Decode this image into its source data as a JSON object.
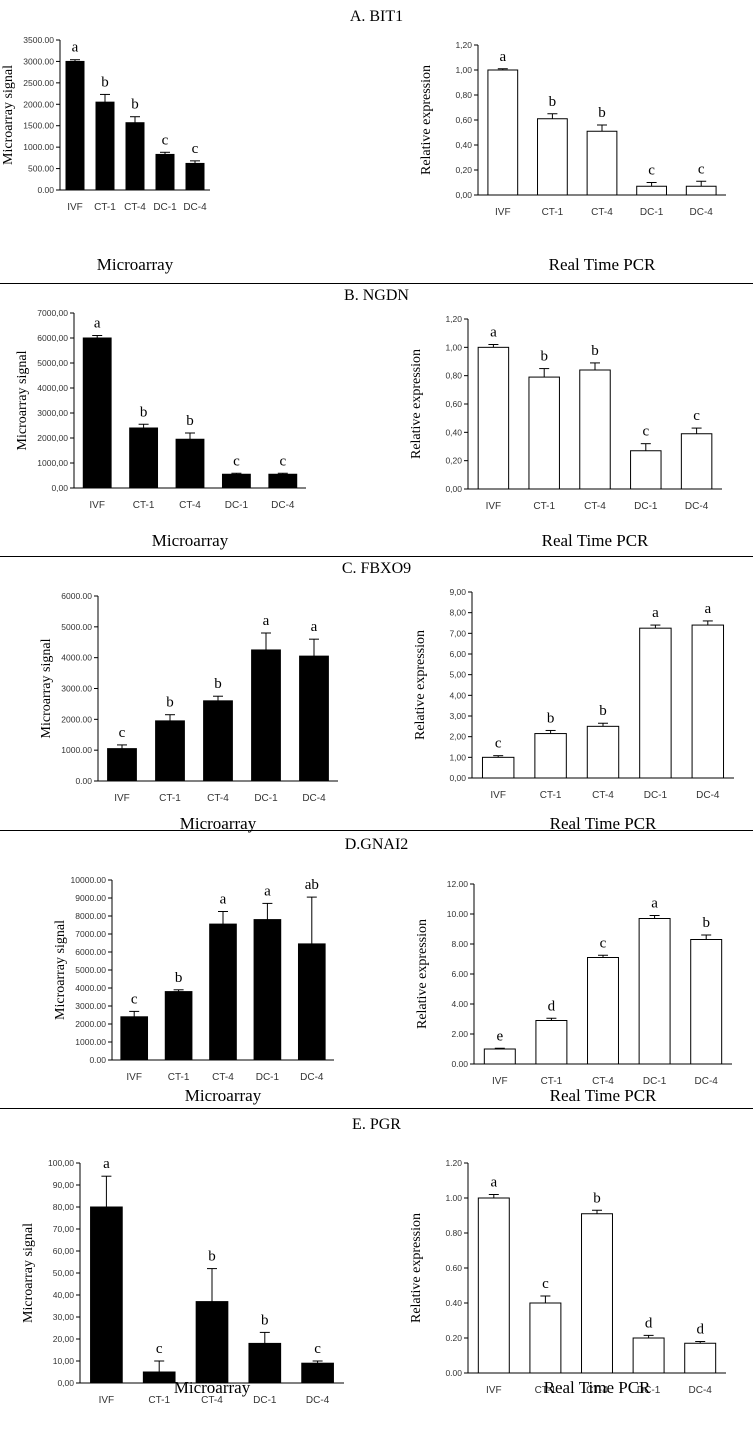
{
  "chart_data": [
    {
      "panel_title": "A. BIT1",
      "charts": [
        {
          "type": "bar",
          "caption": "Microarray",
          "ylabel": "Microarray signal",
          "categories": [
            "IVF",
            "CT-1",
            "CT-4",
            "DC-1",
            "DC-4"
          ],
          "values": [
            3000,
            2050,
            1570,
            830,
            620
          ],
          "errors": [
            40,
            180,
            140,
            50,
            60
          ],
          "letters": [
            "a",
            "b",
            "b",
            "c",
            "c"
          ],
          "ylim": [
            0,
            3500
          ],
          "yticks": [
            "0.00",
            "500.00",
            "1000.00",
            "1500.00",
            "2000.00",
            "2500.00",
            "3000.00",
            "3500.00"
          ],
          "fill": "#000000"
        },
        {
          "type": "bar",
          "caption": "Real Time PCR",
          "ylabel": "Relative expression",
          "categories": [
            "IVF",
            "CT-1",
            "CT-4",
            "DC-1",
            "DC-4"
          ],
          "values": [
            1.0,
            0.61,
            0.51,
            0.07,
            0.07
          ],
          "errors": [
            0.01,
            0.04,
            0.05,
            0.03,
            0.04
          ],
          "letters": [
            "a",
            "b",
            "b",
            "c",
            "c"
          ],
          "ylim": [
            0,
            1.2
          ],
          "yticks": [
            "0,00",
            "0,20",
            "0,40",
            "0,60",
            "0,80",
            "1,00",
            "1,20"
          ],
          "fill": "#ffffff"
        }
      ]
    },
    {
      "panel_title": "B. NGDN",
      "charts": [
        {
          "type": "bar",
          "caption": "Microarray",
          "ylabel": "Microarray signal",
          "categories": [
            "IVF",
            "CT-1",
            "CT-4",
            "DC-1",
            "DC-4"
          ],
          "values": [
            6000,
            2400,
            1950,
            550,
            550
          ],
          "errors": [
            100,
            150,
            250,
            40,
            40
          ],
          "letters": [
            "a",
            "b",
            "b",
            "c",
            "c"
          ],
          "ylim": [
            0,
            7000
          ],
          "yticks": [
            "0,00",
            "1000,00",
            "2000,00",
            "3000,00",
            "4000,00",
            "5000,00",
            "6000,00",
            "7000,00"
          ],
          "fill": "#000000"
        },
        {
          "type": "bar",
          "caption": "Real Time PCR",
          "ylabel": "Relative expression",
          "categories": [
            "IVF",
            "CT-1",
            "CT-4",
            "DC-1",
            "DC-4"
          ],
          "values": [
            1.0,
            0.79,
            0.84,
            0.27,
            0.39
          ],
          "errors": [
            0.02,
            0.06,
            0.05,
            0.05,
            0.04
          ],
          "letters": [
            "a",
            "b",
            "b",
            "c",
            "c"
          ],
          "ylim": [
            0,
            1.2
          ],
          "yticks": [
            "0,00",
            "0,20",
            "0,40",
            "0,60",
            "0,80",
            "1,00",
            "1,20"
          ],
          "fill": "#ffffff"
        }
      ]
    },
    {
      "panel_title": "C. FBXO9",
      "charts": [
        {
          "type": "bar",
          "caption": "Microarray",
          "ylabel": "Microarray signal",
          "categories": [
            "IVF",
            "CT-1",
            "CT-4",
            "DC-1",
            "DC-4"
          ],
          "values": [
            1050,
            1950,
            2600,
            4250,
            4050
          ],
          "errors": [
            120,
            200,
            150,
            550,
            550
          ],
          "letters": [
            "c",
            "b",
            "b",
            "a",
            "a"
          ],
          "ylim": [
            0,
            6000
          ],
          "yticks": [
            "0.00",
            "1000.00",
            "2000.00",
            "3000.00",
            "4000.00",
            "5000.00",
            "6000.00"
          ],
          "fill": "#000000"
        },
        {
          "type": "bar",
          "caption": "Real Time PCR",
          "ylabel": "Relative expression",
          "categories": [
            "IVF",
            "CT-1",
            "CT-4",
            "DC-1",
            "DC-4"
          ],
          "values": [
            1.0,
            2.15,
            2.5,
            7.25,
            7.4
          ],
          "errors": [
            0.08,
            0.15,
            0.15,
            0.15,
            0.2
          ],
          "letters": [
            "c",
            "b",
            "b",
            "a",
            "a"
          ],
          "ylim": [
            0,
            9
          ],
          "yticks": [
            "0,00",
            "1,00",
            "2,00",
            "3,00",
            "4,00",
            "5,00",
            "6,00",
            "7,00",
            "8,00",
            "9,00"
          ],
          "fill": "#ffffff"
        }
      ]
    },
    {
      "panel_title": "D.GNAI2",
      "charts": [
        {
          "type": "bar",
          "caption": "Microarray",
          "ylabel": "Microarray signal",
          "categories": [
            "IVF",
            "CT-1",
            "CT-4",
            "DC-1",
            "DC-4"
          ],
          "values": [
            2400,
            3800,
            7550,
            7800,
            6450
          ],
          "errors": [
            300,
            100,
            700,
            900,
            2600
          ],
          "letters": [
            "c",
            "b",
            "a",
            "a",
            "ab"
          ],
          "ylim": [
            0,
            10000
          ],
          "yticks": [
            "0.00",
            "1000.00",
            "2000.00",
            "3000.00",
            "4000.00",
            "5000.00",
            "6000.00",
            "7000.00",
            "8000.00",
            "9000.00",
            "10000.00"
          ],
          "fill": "#000000"
        },
        {
          "type": "bar",
          "caption": "Real Time PCR",
          "ylabel": "Relative expression",
          "categories": [
            "IVF",
            "CT-1",
            "CT-4",
            "DC-1",
            "DC-4"
          ],
          "values": [
            1.0,
            2.9,
            7.1,
            9.7,
            8.3
          ],
          "errors": [
            0.05,
            0.15,
            0.15,
            0.2,
            0.3
          ],
          "letters": [
            "e",
            "d",
            "c",
            "a",
            "b"
          ],
          "ylim": [
            0,
            12
          ],
          "yticks": [
            "0.00",
            "2.00",
            "4.00",
            "6.00",
            "8.00",
            "10.00",
            "12.00"
          ],
          "fill": "#ffffff"
        }
      ]
    },
    {
      "panel_title": "E. PGR",
      "charts": [
        {
          "type": "bar",
          "caption": "Microarray",
          "ylabel": "Microarray signal",
          "categories": [
            "IVF",
            "CT-1",
            "CT-4",
            "DC-1",
            "DC-4"
          ],
          "values": [
            80,
            5,
            37,
            18,
            9
          ],
          "errors": [
            14,
            5,
            15,
            5,
            1
          ],
          "letters": [
            "a",
            "c",
            "b",
            "b",
            "c"
          ],
          "ylim": [
            0,
            100
          ],
          "yticks": [
            "0,00",
            "10,00",
            "20,00",
            "30,00",
            "40,00",
            "50,00",
            "60,00",
            "70,00",
            "80,00",
            "90,00",
            "100,00"
          ],
          "fill": "#000000"
        },
        {
          "type": "bar",
          "caption": "Real Time PCR",
          "ylabel": "Relative expression",
          "categories": [
            "IVF",
            "CT-1",
            "CT-4",
            "DC-1",
            "DC-4"
          ],
          "values": [
            1.0,
            0.4,
            0.91,
            0.2,
            0.17
          ],
          "errors": [
            0.02,
            0.04,
            0.02,
            0.015,
            0.01
          ],
          "letters": [
            "a",
            "c",
            "b",
            "d",
            "d"
          ],
          "ylim": [
            0,
            1.2
          ],
          "yticks": [
            "0.00",
            "0.20",
            "0.40",
            "0.60",
            "0.80",
            "1.00",
            "1.20"
          ],
          "fill": "#ffffff"
        }
      ]
    }
  ]
}
